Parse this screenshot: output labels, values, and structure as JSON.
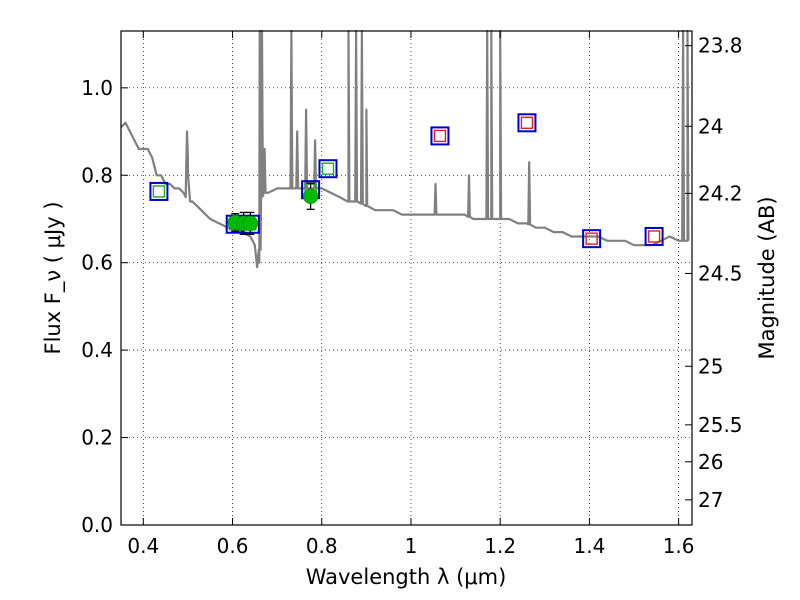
{
  "chart_data": {
    "type": "line",
    "xlabel": "Wavelength  λ (μm)",
    "ylabel": "Flux  F_ν  ( μJy )",
    "ylabel_right": "Magnitude (AB)",
    "xlim": [
      0.35,
      1.63
    ],
    "ylim": [
      0.0,
      1.13
    ],
    "grid": true,
    "x_ticks": [
      0.4,
      0.6,
      0.8,
      1.0,
      1.2,
      1.4,
      1.6
    ],
    "x_tick_labels": [
      "0.4",
      "0.6",
      "0.8",
      "1",
      "1.2",
      "1.4",
      "1.6"
    ],
    "y_ticks": [
      0.0,
      0.2,
      0.4,
      0.6,
      0.8,
      1.0
    ],
    "y_tick_labels": [
      "0.0",
      "0.2",
      "0.4",
      "0.6",
      "0.8",
      "1.0"
    ],
    "right_axis_ticks": [
      {
        "label": "23.8",
        "mag": 23.8
      },
      {
        "label": "24",
        "mag": 24.0
      },
      {
        "label": "24.2",
        "mag": 24.2
      },
      {
        "label": "24.5",
        "mag": 24.5
      },
      {
        "label": "25",
        "mag": 25.0
      },
      {
        "label": "25.5",
        "mag": 25.5
      },
      {
        "label": "26",
        "mag": 26.0
      },
      {
        "label": "27",
        "mag": 27.0
      }
    ],
    "series": [
      {
        "kind": "spectrum",
        "color": "#808080",
        "x": [
          0.35,
          0.36,
          0.37,
          0.38,
          0.39,
          0.4,
          0.41,
          0.42,
          0.43,
          0.44,
          0.45,
          0.46,
          0.47,
          0.48,
          0.49,
          0.495,
          0.5,
          0.505,
          0.51,
          0.53,
          0.55,
          0.57,
          0.59,
          0.6,
          0.62,
          0.64,
          0.65,
          0.655,
          0.66,
          0.665,
          0.67,
          0.68,
          0.7,
          0.72,
          0.74,
          0.76,
          0.78,
          0.8,
          0.82,
          0.84,
          0.86,
          0.88,
          0.9,
          0.92,
          0.94,
          0.96,
          0.98,
          1.0,
          1.02,
          1.04,
          1.06,
          1.08,
          1.1,
          1.12,
          1.14,
          1.16,
          1.18,
          1.2,
          1.22,
          1.24,
          1.26,
          1.28,
          1.3,
          1.32,
          1.34,
          1.36,
          1.38,
          1.4,
          1.42,
          1.44,
          1.46,
          1.48,
          1.5,
          1.52,
          1.54,
          1.56,
          1.58,
          1.6,
          1.62
        ],
        "y": [
          0.91,
          0.92,
          0.9,
          0.88,
          0.86,
          0.86,
          0.86,
          0.84,
          0.8,
          0.8,
          0.78,
          0.78,
          0.77,
          0.77,
          0.76,
          0.75,
          0.84,
          0.74,
          0.74,
          0.72,
          0.7,
          0.69,
          0.68,
          0.68,
          0.67,
          0.66,
          0.64,
          0.59,
          0.6,
          0.75,
          0.76,
          0.76,
          0.77,
          0.77,
          0.77,
          0.77,
          0.77,
          0.77,
          0.76,
          0.75,
          0.74,
          0.74,
          0.73,
          0.72,
          0.72,
          0.72,
          0.71,
          0.71,
          0.71,
          0.71,
          0.71,
          0.71,
          0.71,
          0.71,
          0.7,
          0.7,
          0.7,
          0.7,
          0.7,
          0.69,
          0.69,
          0.68,
          0.68,
          0.67,
          0.67,
          0.66,
          0.66,
          0.66,
          0.66,
          0.65,
          0.65,
          0.65,
          0.64,
          0.64,
          0.64,
          0.65,
          0.66,
          0.65,
          0.65
        ],
        "emission_lines": [
          {
            "x": 0.498,
            "peak": 0.9
          },
          {
            "x": 0.661,
            "peak": 1.13
          },
          {
            "x": 0.666,
            "peak": 1.13
          },
          {
            "x": 0.672,
            "peak": 0.86
          },
          {
            "x": 0.732,
            "peak": 1.13
          },
          {
            "x": 0.745,
            "peak": 0.9
          },
          {
            "x": 0.765,
            "peak": 0.95
          },
          {
            "x": 0.785,
            "peak": 0.88
          },
          {
            "x": 0.86,
            "peak": 1.13
          },
          {
            "x": 0.877,
            "peak": 1.13
          },
          {
            "x": 0.89,
            "peak": 1.13
          },
          {
            "x": 0.9,
            "peak": 0.95
          },
          {
            "x": 1.055,
            "peak": 0.78
          },
          {
            "x": 1.13,
            "peak": 0.8
          },
          {
            "x": 1.171,
            "peak": 1.13
          },
          {
            "x": 1.18,
            "peak": 1.13
          },
          {
            "x": 1.2,
            "peak": 1.13
          },
          {
            "x": 1.265,
            "peak": 0.83
          },
          {
            "x": 1.61,
            "peak": 1.13
          },
          {
            "x": 1.62,
            "peak": 1.13
          }
        ]
      },
      {
        "kind": "observed",
        "marker": "circle",
        "color": "#00bb00",
        "points": [
          {
            "x": 0.606,
            "y": 0.692,
            "err": 0.02
          },
          {
            "x": 0.625,
            "y": 0.69,
            "err": 0.025
          },
          {
            "x": 0.64,
            "y": 0.69,
            "err": 0.025
          },
          {
            "x": 0.775,
            "y": 0.752,
            "err": 0.03
          }
        ]
      },
      {
        "kind": "model",
        "marker": "square",
        "color": "#0000cc",
        "points": [
          {
            "x": 0.435,
            "y": 0.763
          },
          {
            "x": 0.606,
            "y": 0.688
          },
          {
            "x": 0.64,
            "y": 0.688
          },
          {
            "x": 0.775,
            "y": 0.767
          },
          {
            "x": 0.814,
            "y": 0.815
          },
          {
            "x": 1.065,
            "y": 0.89
          },
          {
            "x": 1.26,
            "y": 0.92
          },
          {
            "x": 1.405,
            "y": 0.655
          },
          {
            "x": 1.545,
            "y": 0.66
          }
        ]
      },
      {
        "kind": "model-inner-green",
        "marker": "square",
        "color": "#22aa22",
        "points": [
          {
            "x": 0.435,
            "y": 0.763
          },
          {
            "x": 0.606,
            "y": 0.688
          },
          {
            "x": 0.64,
            "y": 0.688
          },
          {
            "x": 0.775,
            "y": 0.767
          },
          {
            "x": 0.814,
            "y": 0.815
          }
        ]
      },
      {
        "kind": "model-inner-red",
        "marker": "square",
        "color": "#dd2222",
        "points": [
          {
            "x": 1.065,
            "y": 0.89
          },
          {
            "x": 1.26,
            "y": 0.92
          },
          {
            "x": 1.405,
            "y": 0.655
          },
          {
            "x": 1.545,
            "y": 0.66
          }
        ]
      }
    ]
  }
}
